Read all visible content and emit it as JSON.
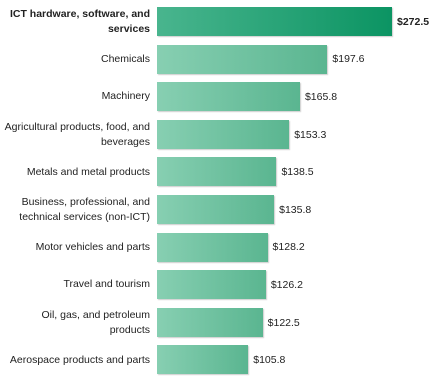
{
  "chart_data": {
    "type": "bar",
    "orientation": "horizontal",
    "categories": [
      "ICT hardware, software, and services",
      "Chemicals",
      "Machinery",
      "Agricultural products, food, and beverages",
      "Metals and metal products",
      "Business, professional, and technical services (non-ICT)",
      "Motor vehicles and parts",
      "Travel and tourism",
      "Oil, gas, and petroleum products",
      "Aerospace products and parts"
    ],
    "values": [
      272.5,
      197.6,
      165.8,
      153.3,
      138.5,
      135.8,
      128.2,
      126.2,
      122.5,
      105.8
    ],
    "value_labels": [
      "$272.5",
      "$197.6",
      "$165.8",
      "$153.3",
      "$138.5",
      "$135.8",
      "$128.2",
      "$126.2",
      "$122.5",
      "$105.8"
    ],
    "colors": [
      "#0c9c68",
      "#5fbf98",
      "#5fbf98",
      "#5fbf98",
      "#5fbf98",
      "#5fbf98",
      "#5fbf98",
      "#5fbf98",
      "#5fbf98",
      "#5fbf98"
    ]
  }
}
